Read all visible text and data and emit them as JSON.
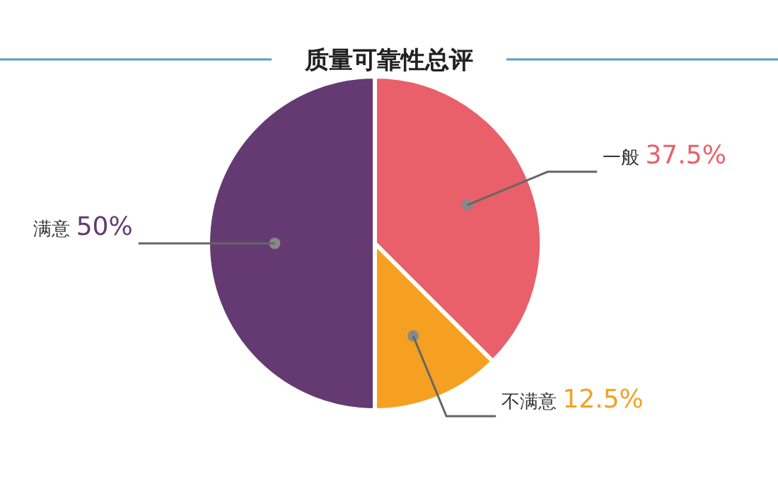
{
  "chart_data": {
    "type": "pie",
    "title": "质量可靠性总评",
    "categories": [
      "一般",
      "不满意",
      "满意"
    ],
    "values": [
      37.5,
      12.5,
      50
    ],
    "value_labels": [
      "37.5%",
      "12.5%",
      "50%"
    ],
    "colors": [
      "#e9606a",
      "#f5a021",
      "#653a73"
    ]
  }
}
